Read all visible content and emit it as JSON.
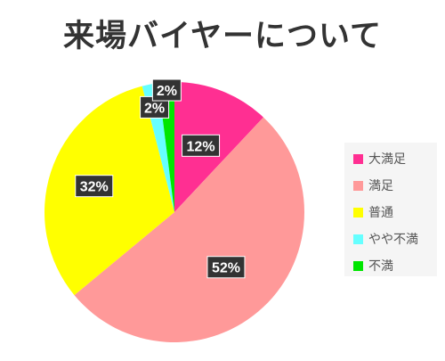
{
  "chart_data": {
    "type": "pie",
    "title": "来場バイヤーについて",
    "categories": [
      "大満足",
      "満足",
      "普通",
      "やや不満",
      "不満"
    ],
    "values": [
      12,
      52,
      32,
      2,
      2
    ],
    "labels": [
      "12%",
      "52%",
      "32%",
      "2%",
      "2%"
    ],
    "colors": [
      "#ff2f92",
      "#ff9999",
      "#ffff00",
      "#66ffff",
      "#00e600"
    ],
    "start_angle": "top, clockwise",
    "legend": "right"
  }
}
